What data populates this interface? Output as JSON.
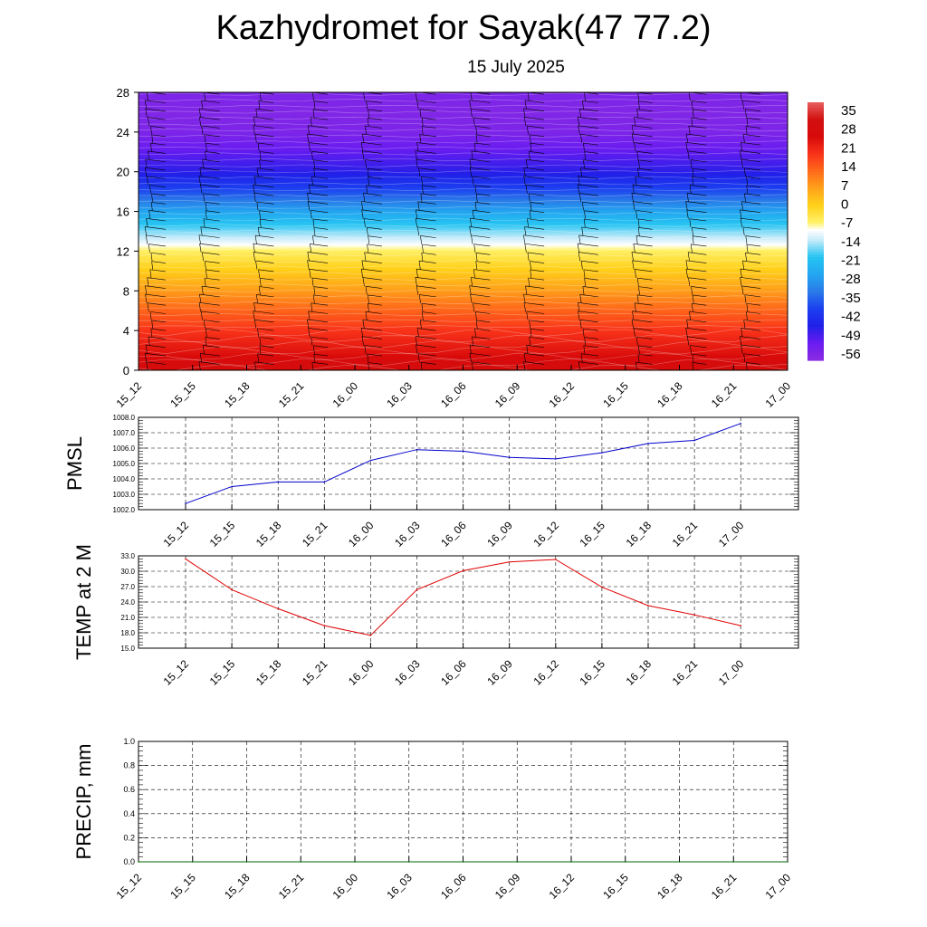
{
  "header": {
    "title": "Kazhydromet for Sayak(47 77.2)",
    "subtitle": "15 July 2025"
  },
  "chart_data": [
    {
      "id": "cross-section",
      "type": "heatmap",
      "x_ticks": [
        "15_12",
        "15_15",
        "15_18",
        "15_21",
        "16_00",
        "16_03",
        "16_06",
        "16_09",
        "16_12",
        "16_15",
        "16_18",
        "16_21",
        "17_00"
      ],
      "y_ticks": [
        "0",
        "4",
        "8",
        "12",
        "16",
        "20",
        "24",
        "28"
      ],
      "ylim": [
        0,
        28
      ],
      "colorbar": {
        "labels": [
          "35",
          "28",
          "21",
          "14",
          "7",
          "0",
          "-7",
          "-14",
          "-21",
          "-28",
          "-35",
          "-42",
          "-49",
          "-56"
        ],
        "range": [
          -63,
          42
        ]
      },
      "temperature_profile": [
        {
          "y": 0,
          "value": 32
        },
        {
          "y": 2,
          "value": 26
        },
        {
          "y": 4,
          "value": 21
        },
        {
          "y": 6,
          "value": 15
        },
        {
          "y": 8,
          "value": 8
        },
        {
          "y": 10,
          "value": 1
        },
        {
          "y": 12,
          "value": -6
        },
        {
          "y": 13,
          "value": -12
        },
        {
          "y": 14,
          "value": -17
        },
        {
          "y": 16,
          "value": -28
        },
        {
          "y": 18,
          "value": -40
        },
        {
          "y": 20,
          "value": -50
        },
        {
          "y": 22,
          "value": -55
        },
        {
          "y": 24,
          "value": -60
        },
        {
          "y": 26,
          "value": -61
        },
        {
          "y": 28,
          "value": -60
        }
      ],
      "colors": {
        "-63": "#8a2be2",
        "-56": "#6a1cf0",
        "-49": "#2020e8",
        "-42": "#1c3ff0",
        "-35": "#2a7be8",
        "-28": "#23a6f0",
        "-21": "#26c4f2",
        "-14": "#c8ecfa",
        "-10": "#ffffff",
        "-7": "#fff26a",
        "0": "#ffd11a",
        "7": "#ffa31a",
        "14": "#ff6a1a",
        "21": "#f8321a",
        "28": "#d80a0a",
        "35": "#d21010",
        "42": "#e86060"
      },
      "wind_barbs": "black, at each time step across all heights"
    },
    {
      "id": "pmsl",
      "type": "line",
      "ylabel": "PMSL",
      "categories": [
        "15_12",
        "15_15",
        "15_18",
        "15_21",
        "16_00",
        "16_03",
        "16_06",
        "16_09",
        "16_12",
        "16_15",
        "16_18",
        "16_21",
        "17_00"
      ],
      "y_ticks": [
        "1002.0",
        "1003.0",
        "1004.0",
        "1005.0",
        "1006.0",
        "1007.0",
        "1008.0"
      ],
      "ylim": [
        1002,
        1008
      ],
      "series": [
        {
          "values": [
            1002.4,
            1003.5,
            1003.8,
            1003.8,
            1005.2,
            1005.9,
            1005.8,
            1005.4,
            1005.3,
            1005.7,
            1006.3,
            1006.5,
            1007.6
          ],
          "color": "#0000cc"
        }
      ],
      "grid": true
    },
    {
      "id": "temp2m",
      "type": "line",
      "ylabel": "TEMP at 2 M",
      "categories": [
        "15_12",
        "15_15",
        "15_18",
        "15_21",
        "16_00",
        "16_03",
        "16_06",
        "16_09",
        "16_12",
        "16_15",
        "16_18",
        "16_21",
        "17_00"
      ],
      "y_ticks": [
        "15.0",
        "18.0",
        "21.0",
        "24.0",
        "27.0",
        "30.0",
        "33.0"
      ],
      "ylim": [
        15,
        33
      ],
      "series": [
        {
          "values": [
            32.4,
            26.4,
            22.7,
            19.4,
            17.5,
            26.4,
            30.1,
            31.8,
            32.3,
            26.9,
            23.3,
            21.5,
            19.4
          ],
          "color": "#e00000"
        }
      ],
      "grid": true
    },
    {
      "id": "precip",
      "type": "line",
      "ylabel": "PRECIP, mm",
      "x_ticks": [
        "15_12",
        "15_15",
        "15_18",
        "15_21",
        "16_00",
        "16_03",
        "16_06",
        "16_09",
        "16_12",
        "16_15",
        "16_18",
        "16_21",
        "17_00"
      ],
      "y_ticks": [
        "0.0",
        "0.2",
        "0.4",
        "0.6",
        "0.8",
        "1.0"
      ],
      "ylim": [
        0,
        1
      ],
      "series": [
        {
          "values": [
            0,
            0,
            0,
            0,
            0,
            0,
            0,
            0,
            0,
            0,
            0,
            0,
            0
          ],
          "color": "#006400"
        }
      ],
      "grid": true
    }
  ]
}
